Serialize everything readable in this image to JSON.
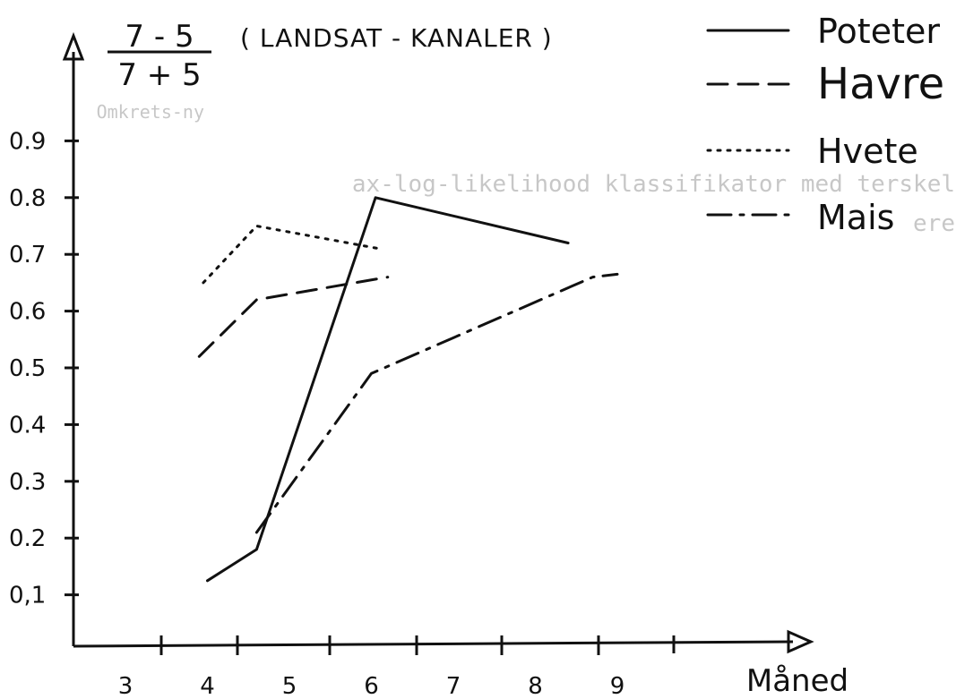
{
  "chart_data": {
    "type": "line",
    "title": {
      "numerator": "7 - 5",
      "denominator": "7 + 5",
      "text": "( LANDSAT - KANALER )"
    },
    "xlabel": "Måned",
    "ylabel": "",
    "xlim": [
      2.5,
      10.5
    ],
    "ylim": [
      -0.01,
      1.0
    ],
    "x_ticks": [
      3,
      4,
      5,
      6,
      7,
      8,
      9
    ],
    "x_tick_labels": [
      "3",
      "4",
      "5",
      "6",
      "7",
      "8",
      "9"
    ],
    "y_ticks": [
      0.1,
      0.2,
      0.3,
      0.4,
      0.5,
      0.6,
      0.7,
      0.8,
      0.9
    ],
    "y_tick_labels": [
      "0,1",
      "0.2",
      "0.3",
      "0.4",
      "0.5",
      "0.6",
      "0.7",
      "0.8",
      "0.9"
    ],
    "grid": false,
    "legend_position": "top-right",
    "series": [
      {
        "name": "Poteter",
        "style": "solid",
        "x": [
          4.0,
          4.6,
          6.05,
          8.4
        ],
        "y": [
          0.125,
          0.18,
          0.8,
          0.72
        ]
      },
      {
        "name": "Havre",
        "style": "dashed",
        "x": [
          3.9,
          4.6,
          6.2
        ],
        "y": [
          0.52,
          0.62,
          0.66
        ]
      },
      {
        "name": "Hvete",
        "style": "dotted",
        "x": [
          3.95,
          4.6,
          6.1
        ],
        "y": [
          0.65,
          0.75,
          0.71
        ]
      },
      {
        "name": "Mais",
        "style": "dashdot",
        "x": [
          4.6,
          6.0,
          8.7,
          9.0
        ],
        "y": [
          0.21,
          0.49,
          0.66,
          0.665
        ]
      }
    ]
  },
  "bleed_through": {
    "line1": "ax-log-likelihood klassifikator med terskel",
    "line2": "Omkrets-ny",
    "line3": "ere"
  }
}
